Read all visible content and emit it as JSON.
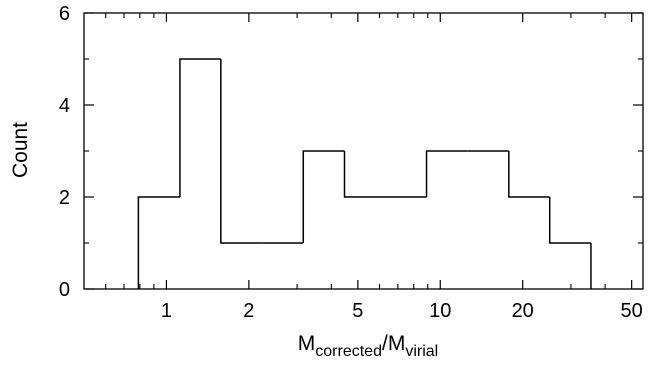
{
  "chart_data": {
    "type": "bar",
    "style": "step-histogram",
    "x_scale": "log",
    "xlim": [
      0.5,
      55
    ],
    "ylim": [
      0,
      6
    ],
    "grid": false,
    "legend": "none",
    "xlabel": {
      "main_a": "M",
      "sub_a": "corrected",
      "sep": "/",
      "main_b": "M",
      "sub_b": "virial"
    },
    "ylabel": "Count",
    "x_ticks_major": [
      1,
      2,
      5,
      10,
      20,
      50
    ],
    "x_tick_labels": [
      "1",
      "2",
      "5",
      "10",
      "20",
      "50"
    ],
    "x_ticks_minor": [
      0.6,
      0.7,
      0.8,
      0.9,
      3,
      4,
      6,
      7,
      8,
      9,
      30,
      40
    ],
    "y_ticks_major": [
      0,
      2,
      4,
      6
    ],
    "y_tick_labels": [
      "0",
      "2",
      "4",
      "6"
    ],
    "y_ticks_minor": [
      1,
      3,
      5
    ],
    "bins": [
      {
        "x0": 0.79,
        "x1": 1.12,
        "count": 2
      },
      {
        "x0": 1.12,
        "x1": 1.58,
        "count": 5
      },
      {
        "x0": 1.58,
        "x1": 2.24,
        "count": 1
      },
      {
        "x0": 2.24,
        "x1": 3.16,
        "count": 1
      },
      {
        "x0": 3.16,
        "x1": 4.47,
        "count": 3
      },
      {
        "x0": 4.47,
        "x1": 6.31,
        "count": 2
      },
      {
        "x0": 6.31,
        "x1": 8.91,
        "count": 2
      },
      {
        "x0": 8.91,
        "x1": 12.6,
        "count": 3
      },
      {
        "x0": 12.6,
        "x1": 17.8,
        "count": 3
      },
      {
        "x0": 17.8,
        "x1": 25.1,
        "count": 2
      },
      {
        "x0": 25.1,
        "x1": 35.5,
        "count": 1
      }
    ],
    "line_color": "#000000"
  }
}
